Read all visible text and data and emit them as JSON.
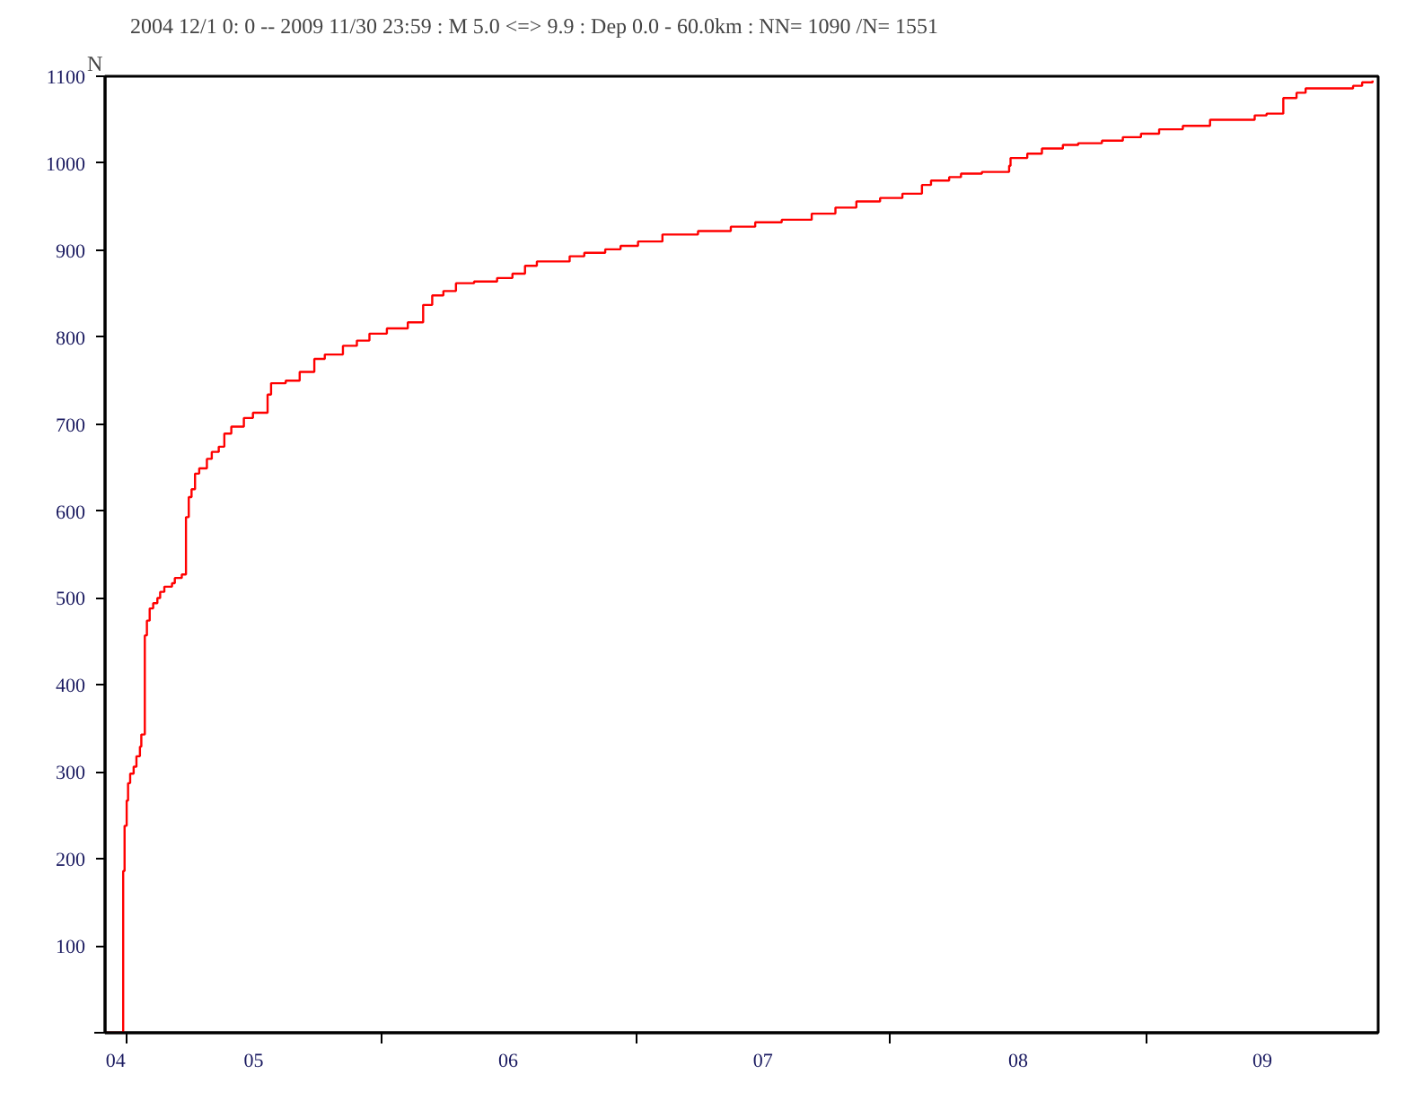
{
  "chart_data": {
    "type": "step",
    "title": "2004 12/1 0: 0 -- 2009 11/30 23:59  : M 5.0 <=> 9.9   : Dep 0.0 - 60.0km :  NN= 1090 /N= 1551",
    "ylabel": "N",
    "color": "#ff0000",
    "x": [
      "2004-12-01",
      "2004-12-27",
      "2004-12-29",
      "2005-01-01",
      "2005-01-03",
      "2005-01-06",
      "2005-01-11",
      "2005-01-15",
      "2005-01-20",
      "2005-01-22",
      "2005-01-27",
      "2005-01-30",
      "2005-02-03",
      "2005-02-08",
      "2005-02-14",
      "2005-02-18",
      "2005-02-24",
      "2005-03-07",
      "2005-03-11",
      "2005-03-21",
      "2005-03-27",
      "2005-03-31",
      "2005-04-04",
      "2005-04-09",
      "2005-04-15",
      "2005-04-26",
      "2005-05-03",
      "2005-05-13",
      "2005-05-21",
      "2005-05-31",
      "2005-06-18",
      "2005-07-01",
      "2005-07-22",
      "2005-07-27",
      "2005-08-17",
      "2005-09-06",
      "2005-09-27",
      "2005-10-12",
      "2005-11-07",
      "2005-11-27",
      "2005-12-15",
      "2006-01-09",
      "2006-02-08",
      "2006-03-02",
      "2006-03-15",
      "2006-03-31",
      "2006-04-18",
      "2006-05-14",
      "2006-06-16",
      "2006-07-08",
      "2006-07-26",
      "2006-08-12",
      "2006-09-28",
      "2006-10-19",
      "2006-11-18",
      "2006-12-10",
      "2007-01-04",
      "2007-02-08",
      "2007-03-31",
      "2007-05-17",
      "2007-06-21",
      "2007-07-29",
      "2007-09-10",
      "2007-10-14",
      "2007-11-13",
      "2007-12-17",
      "2008-01-18",
      "2008-02-15",
      "2008-02-28",
      "2008-03-25",
      "2008-04-11",
      "2008-05-11",
      "2008-06-19",
      "2008-06-21",
      "2008-07-15",
      "2008-08-05",
      "2008-09-04",
      "2008-09-26",
      "2008-10-30",
      "2008-11-29",
      "2008-12-25",
      "2009-01-20",
      "2009-02-23",
      "2009-04-03",
      "2009-06-06",
      "2009-06-23",
      "2009-07-17",
      "2009-08-05",
      "2009-08-18",
      "2009-10-25",
      "2009-11-07",
      "2009-11-22"
    ],
    "values": [
      0,
      186,
      238,
      267,
      287,
      298,
      306,
      318,
      329,
      343,
      457,
      474,
      488,
      494,
      500,
      507,
      513,
      517,
      523,
      527,
      593,
      616,
      625,
      643,
      649,
      660,
      668,
      674,
      689,
      697,
      707,
      713,
      734,
      747,
      750,
      760,
      775,
      780,
      790,
      796,
      804,
      810,
      817,
      837,
      848,
      853,
      862,
      864,
      868,
      873,
      882,
      887,
      893,
      897,
      901,
      905,
      910,
      918,
      922,
      927,
      932,
      935,
      942,
      949,
      956,
      960,
      965,
      975,
      980,
      984,
      988,
      990,
      997,
      1006,
      1011,
      1017,
      1021,
      1023,
      1026,
      1030,
      1034,
      1039,
      1043,
      1050,
      1055,
      1057,
      1075,
      1081,
      1086,
      1089,
      1093,
      1095
    ],
    "xlim": [
      "2004-12-01",
      "2009-11-30"
    ],
    "xticks": [
      {
        "value": "2004-12-16",
        "label": "04"
      },
      {
        "value": "2005-01-01",
        "label": null
      },
      {
        "value": "2005-07-02",
        "label": "05"
      },
      {
        "value": "2006-01-01",
        "label": null
      },
      {
        "value": "2006-07-02",
        "label": "06"
      },
      {
        "value": "2007-01-01",
        "label": null
      },
      {
        "value": "2007-07-02",
        "label": "07"
      },
      {
        "value": "2008-01-01",
        "label": null
      },
      {
        "value": "2008-07-02",
        "label": "08"
      },
      {
        "value": "2009-01-01",
        "label": null
      },
      {
        "value": "2009-06-17",
        "label": "09"
      }
    ],
    "ylim": [
      0,
      1100
    ],
    "yticks": [
      {
        "value": 0,
        "label": null
      },
      100,
      200,
      300,
      400,
      500,
      600,
      700,
      800,
      900,
      1000,
      1100
    ]
  }
}
